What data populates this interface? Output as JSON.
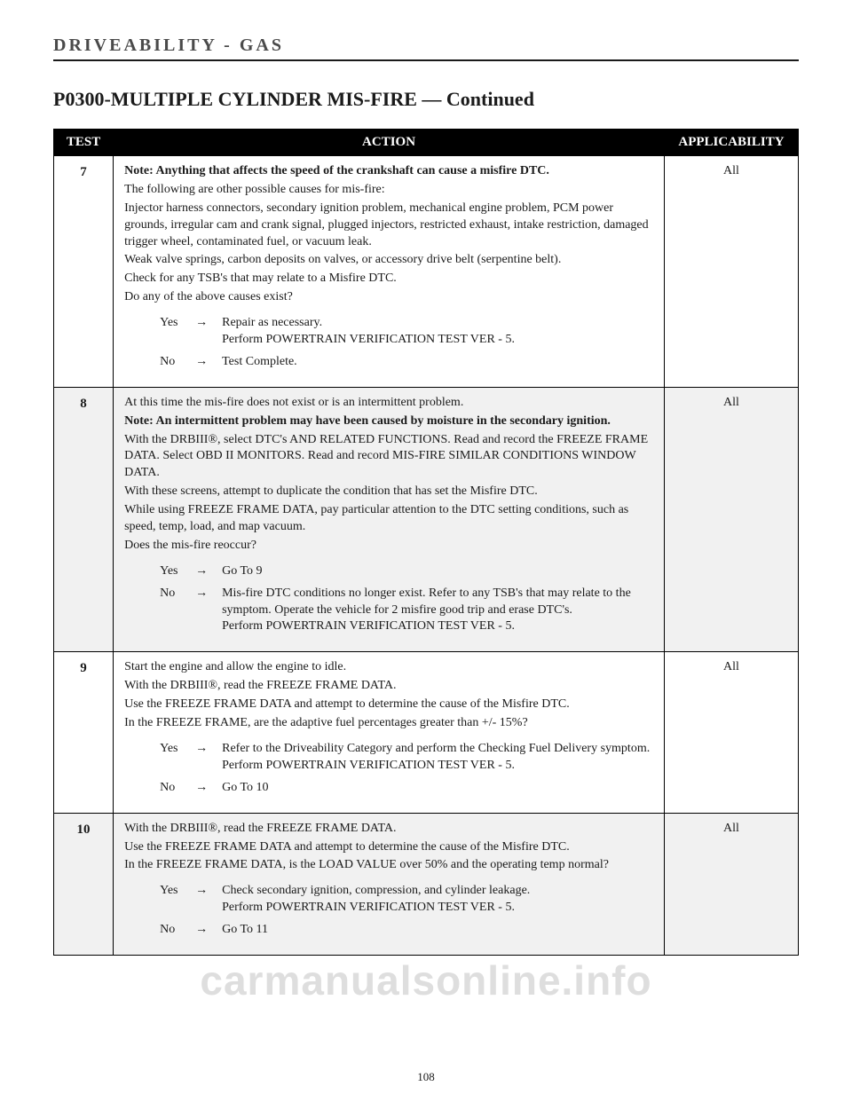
{
  "header": {
    "section": "DRIVEABILITY - GAS",
    "title": "P0300-MULTIPLE CYLINDER MIS-FIRE",
    "continued": " — Continued"
  },
  "columns": {
    "test": "TEST",
    "action": "ACTION",
    "applicability": "APPLICABILITY"
  },
  "rows": [
    {
      "num": "7",
      "app": "All",
      "body": [
        {
          "cls": "note",
          "t": "Note: Anything that affects the speed of the crankshaft can cause a misfire DTC."
        },
        {
          "t": "The following are other possible causes for mis-fire:"
        },
        {
          "t": "Injector harness connectors, secondary ignition problem, mechanical engine problem, PCM power grounds, irregular cam and crank signal, plugged injectors, restricted exhaust, intake restriction, damaged trigger wheel, contaminated fuel, or vacuum leak."
        },
        {
          "t": "Weak valve springs, carbon deposits on valves, or accessory drive belt (serpentine belt)."
        },
        {
          "t": "Check for any TSB's that may relate to a Misfire DTC."
        },
        {
          "t": "Do any of the above causes exist?"
        }
      ],
      "yes": "Repair as necessary.\nPerform POWERTRAIN VERIFICATION TEST VER - 5.",
      "no": "Test Complete."
    },
    {
      "num": "8",
      "app": "All",
      "body": [
        {
          "t": "At this time the mis-fire does not exist or is an intermittent problem."
        },
        {
          "cls": "note",
          "t": "Note: An intermittent problem may have been caused by moisture in the secondary ignition."
        },
        {
          "t": "With the DRBIII®, select DTC's AND RELATED FUNCTIONS. Read and record the FREEZE FRAME DATA. Select OBD II MONITORS. Read and record MIS-FIRE SIMILAR CONDITIONS WINDOW DATA."
        },
        {
          "t": "With these screens, attempt to duplicate the condition that has set the Misfire DTC."
        },
        {
          "t": "While using FREEZE FRAME DATA, pay particular attention to the DTC setting conditions, such as speed, temp, load, and map vacuum."
        },
        {
          "t": "Does the mis-fire reoccur?"
        }
      ],
      "yes": "Go To   9",
      "no": "Mis-fire DTC conditions no longer exist. Refer to any TSB's that may relate to the symptom. Operate the vehicle for 2 misfire good trip and erase DTC's.\nPerform POWERTRAIN VERIFICATION TEST VER - 5."
    },
    {
      "num": "9",
      "app": "All",
      "body": [
        {
          "t": "Start the engine and allow the engine to idle."
        },
        {
          "t": "With the DRBIII®, read the FREEZE FRAME DATA."
        },
        {
          "t": "Use the FREEZE FRAME DATA and attempt to determine the cause of the Misfire DTC."
        },
        {
          "t": "In the FREEZE FRAME, are the adaptive fuel percentages greater than +/- 15%?"
        }
      ],
      "yes": "Refer to the Driveability Category and perform the Checking Fuel Delivery symptom.\nPerform POWERTRAIN VERIFICATION TEST VER - 5.",
      "no": "Go To   10"
    },
    {
      "num": "10",
      "app": "All",
      "body": [
        {
          "t": "With the DRBIII®, read the FREEZE FRAME DATA."
        },
        {
          "t": "Use the FREEZE FRAME DATA and attempt to determine the cause of the Misfire DTC."
        },
        {
          "t": "In the FREEZE FRAME DATA, is the LOAD VALUE over 50% and the operating temp normal?"
        }
      ],
      "yes": "Check secondary ignition, compression, and cylinder leakage.\nPerform POWERTRAIN VERIFICATION TEST VER - 5.",
      "no": "Go To   11"
    }
  ],
  "labels": {
    "yes": "Yes",
    "no": "No",
    "arrow": "→"
  },
  "watermark": "carmanualsonline.info",
  "pageNumber": "108"
}
